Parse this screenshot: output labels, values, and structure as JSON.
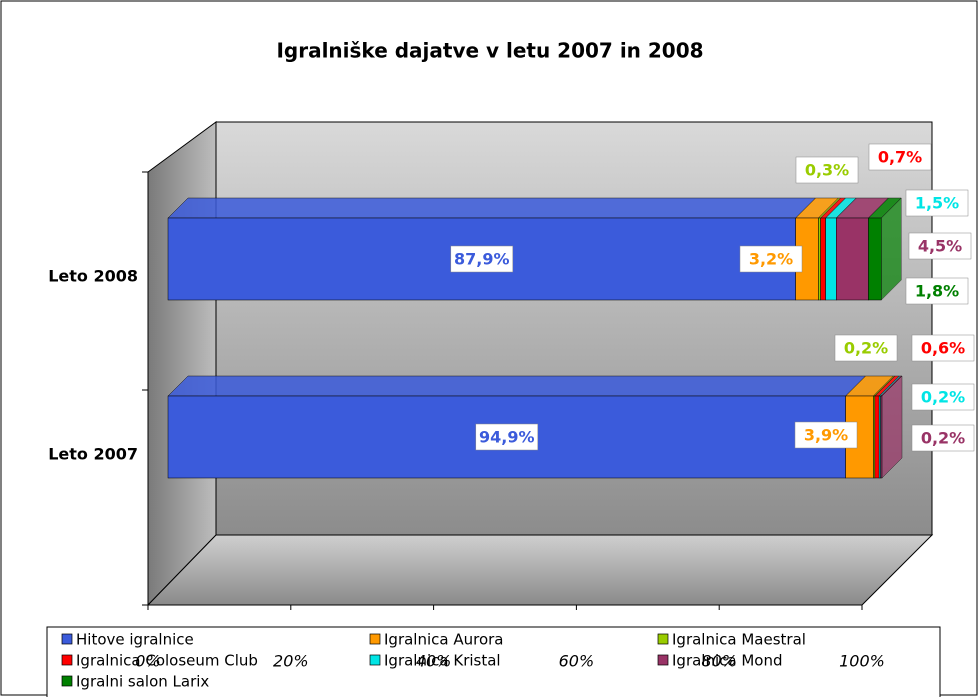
{
  "chart_data": {
    "type": "bar",
    "orientation": "horizontal",
    "stacked": true,
    "title": "Igralniške dajatve v letu 2007 in 2008",
    "categories": [
      "Leto 2007",
      "Leto 2008"
    ],
    "xlim": [
      0,
      100
    ],
    "xticks": [
      {
        "value": 0,
        "label": "0%"
      },
      {
        "value": 20,
        "label": "20%"
      },
      {
        "value": 40,
        "label": "40%"
      },
      {
        "value": 60,
        "label": "60%"
      },
      {
        "value": 80,
        "label": "80%"
      },
      {
        "value": 100,
        "label": "100%"
      }
    ],
    "series": [
      {
        "name": "Hitove igralnice",
        "color": "#3b5bdb",
        "values": [
          94.9,
          87.9
        ],
        "value_labels": [
          "94,9%",
          "87,9%"
        ]
      },
      {
        "name": "Igralnica Aurora",
        "color": "#ff9900",
        "values": [
          3.9,
          3.2
        ],
        "value_labels": [
          "3,9%",
          "3,2%"
        ]
      },
      {
        "name": "Igralnica Maestral",
        "color": "#99cc00",
        "values": [
          0.2,
          0.3
        ],
        "value_labels": [
          "0,2%",
          "0,3%"
        ]
      },
      {
        "name": "Igralnica Coloseum Club",
        "color": "#ff0000",
        "values": [
          0.6,
          0.7
        ],
        "value_labels": [
          "0,6%",
          "0,7%"
        ]
      },
      {
        "name": "Igralnica Kristal",
        "color": "#00e5e5",
        "values": [
          0.2,
          1.5
        ],
        "value_labels": [
          "0,2%",
          "1,5%"
        ]
      },
      {
        "name": "Igralnica Mond",
        "color": "#993366",
        "values": [
          0.2,
          4.5
        ],
        "value_labels": [
          "0,2%",
          "4,5%"
        ]
      },
      {
        "name": "Igralni salon Larix",
        "color": "#008000",
        "values": [
          null,
          1.8
        ],
        "value_labels": [
          null,
          "1,8%"
        ]
      }
    ],
    "legend": "bottom"
  }
}
